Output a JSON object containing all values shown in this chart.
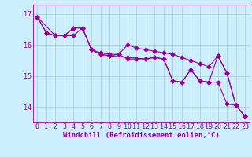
{
  "background_color": "#cceeff",
  "line_color": "#990099",
  "grid_color": "#aacccc",
  "xlabel": "Windchill (Refroidissement éolien,°C)",
  "tick_fontsize": 6,
  "xlim": [
    -0.5,
    23.5
  ],
  "ylim": [
    13.5,
    17.3
  ],
  "yticks": [
    14,
    15,
    16,
    17
  ],
  "xticks": [
    0,
    1,
    2,
    3,
    4,
    5,
    6,
    7,
    8,
    9,
    10,
    11,
    12,
    13,
    14,
    15,
    16,
    17,
    18,
    19,
    20,
    21,
    22,
    23
  ],
  "series1": [
    [
      0,
      16.9
    ],
    [
      1,
      16.4
    ],
    [
      2,
      16.3
    ],
    [
      3,
      16.3
    ],
    [
      4,
      16.55
    ],
    [
      5,
      16.55
    ],
    [
      6,
      15.85
    ],
    [
      7,
      15.7
    ],
    [
      8,
      15.65
    ],
    [
      9,
      15.7
    ],
    [
      10,
      15.55
    ],
    [
      11,
      15.55
    ],
    [
      12,
      15.55
    ],
    [
      13,
      15.6
    ],
    [
      14,
      15.55
    ],
    [
      15,
      14.85
    ],
    [
      16,
      14.8
    ],
    [
      17,
      15.2
    ],
    [
      18,
      14.85
    ],
    [
      19,
      14.8
    ],
    [
      20,
      15.65
    ],
    [
      21,
      15.1
    ],
    [
      22,
      14.05
    ],
    [
      23,
      13.7
    ]
  ],
  "series2": [
    [
      0,
      16.9
    ],
    [
      1,
      16.4
    ],
    [
      2,
      16.3
    ],
    [
      3,
      16.3
    ],
    [
      4,
      16.55
    ],
    [
      5,
      16.55
    ],
    [
      6,
      15.85
    ],
    [
      7,
      15.75
    ],
    [
      8,
      15.7
    ],
    [
      9,
      15.7
    ],
    [
      10,
      16.0
    ],
    [
      11,
      15.9
    ],
    [
      12,
      15.85
    ],
    [
      13,
      15.8
    ],
    [
      14,
      15.75
    ],
    [
      15,
      15.7
    ],
    [
      16,
      15.6
    ],
    [
      17,
      15.5
    ],
    [
      18,
      15.4
    ],
    [
      19,
      15.3
    ],
    [
      20,
      15.65
    ],
    [
      21,
      15.1
    ],
    [
      22,
      14.05
    ],
    [
      23,
      13.7
    ]
  ],
  "series3": [
    [
      0,
      16.9
    ],
    [
      2,
      16.3
    ],
    [
      4,
      16.3
    ],
    [
      5,
      16.55
    ],
    [
      6,
      15.85
    ],
    [
      7,
      15.7
    ],
    [
      8,
      15.65
    ],
    [
      10,
      15.6
    ],
    [
      12,
      15.55
    ],
    [
      13,
      15.6
    ],
    [
      14,
      15.55
    ],
    [
      15,
      14.85
    ],
    [
      16,
      14.8
    ],
    [
      17,
      15.2
    ],
    [
      18,
      14.85
    ],
    [
      19,
      14.8
    ],
    [
      20,
      14.8
    ],
    [
      21,
      14.1
    ],
    [
      22,
      14.05
    ],
    [
      23,
      13.7
    ]
  ]
}
